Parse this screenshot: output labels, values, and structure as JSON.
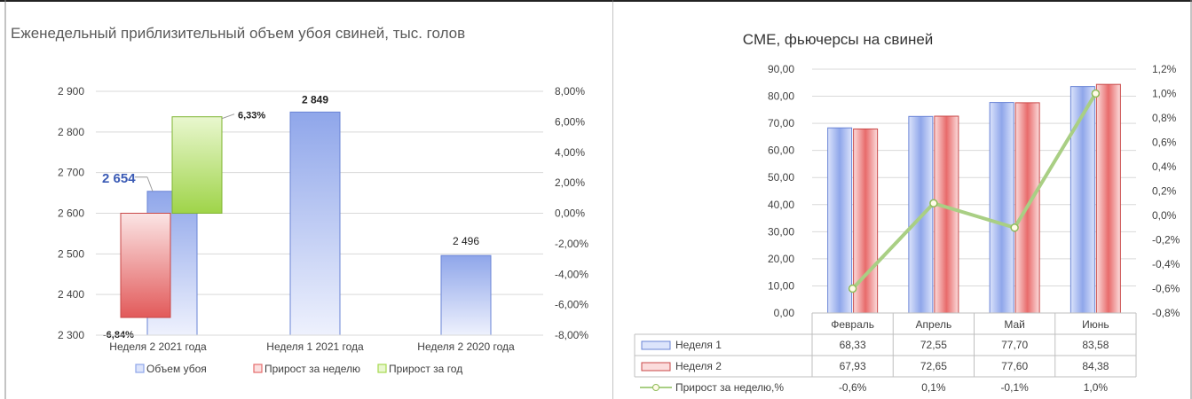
{
  "left_chart": {
    "title": "Еженедельный приблизительный объем убоя свиней, тыс. голов",
    "y_ticks": [
      "2 900",
      "2 800",
      "2 700",
      "2 600",
      "2 500",
      "2 400",
      "2 300"
    ],
    "y2_ticks": [
      "8,00%",
      "6,00%",
      "4,00%",
      "2,00%",
      "0,00%",
      "-2,00%",
      "-4,00%",
      "-6,00%",
      "-8,00%"
    ],
    "legend": [
      "Объем убоя",
      "Прирост за неделю",
      "Прирост за год"
    ]
  },
  "right_chart": {
    "title": "CME, фьючерсы на свиней",
    "y_ticks": [
      "90,00",
      "80,00",
      "70,00",
      "60,00",
      "50,00",
      "40,00",
      "30,00",
      "20,00",
      "10,00",
      "0,00"
    ],
    "y2_ticks": [
      "1,2%",
      "1,0%",
      "0,8%",
      "0,6%",
      "0,4%",
      "0,2%",
      "0,0%",
      "-0,2%",
      "-0,4%",
      "-0,6%",
      "-0,8%"
    ],
    "table": {
      "headers": [
        "Февраль",
        "Апрель",
        "Май",
        "Июнь"
      ],
      "rows": [
        {
          "label": "Неделя 1",
          "values": [
            "68,33",
            "72,55",
            "77,70",
            "83,58"
          ]
        },
        {
          "label": "Неделя 2",
          "values": [
            "67,93",
            "72,65",
            "77,60",
            "84,38"
          ]
        },
        {
          "label": "Прирост за неделю,%",
          "values": [
            "-0,6%",
            "0,1%",
            "-0,1%",
            "1,0%"
          ]
        }
      ]
    }
  },
  "chart_data": [
    {
      "type": "bar",
      "title": "Еженедельный приблизительный объем убоя свиней, тыс. голов",
      "categories": [
        "Неделя 2 2021 года",
        "Неделя 1 2021 года",
        "Неделя 2 2020 года"
      ],
      "ylim": [
        2300,
        2900
      ],
      "y2lim": [
        -8,
        8
      ],
      "series": [
        {
          "name": "Объем убоя",
          "values": [
            2654,
            2849,
            2496
          ],
          "labels": [
            "2 654",
            "2 849",
            "2 496"
          ],
          "color": "#8ea5e8"
        },
        {
          "name": "Прирост за неделю",
          "values": [
            -6.84,
            null,
            null
          ],
          "labels": [
            "-6,84%",
            "",
            ""
          ],
          "color": "#e56b6b"
        },
        {
          "name": "Прирост за год",
          "values": [
            6.33,
            null,
            null
          ],
          "labels": [
            "6,33%",
            "",
            ""
          ],
          "color": "#a6d94f"
        }
      ],
      "legend_position": "bottom",
      "grid": true
    },
    {
      "type": "bar",
      "title": "CME, фьючерсы на свиней",
      "categories": [
        "Февраль",
        "Апрель",
        "Май",
        "Июнь"
      ],
      "ylim": [
        0,
        90
      ],
      "y2lim": [
        -0.8,
        1.2
      ],
      "series": [
        {
          "name": "Неделя 1",
          "values": [
            68.33,
            72.55,
            77.7,
            83.58
          ],
          "color": "#8ea5e8"
        },
        {
          "name": "Неделя 2",
          "values": [
            67.93,
            72.65,
            77.6,
            84.38
          ],
          "color": "#e56b6b"
        },
        {
          "name": "Прирост за неделю,%",
          "type": "line",
          "axis": "secondary",
          "values": [
            -0.6,
            0.1,
            -0.1,
            1.0
          ],
          "color": "#8fbc5a"
        }
      ],
      "legend_position": "data-table",
      "grid": true
    }
  ]
}
